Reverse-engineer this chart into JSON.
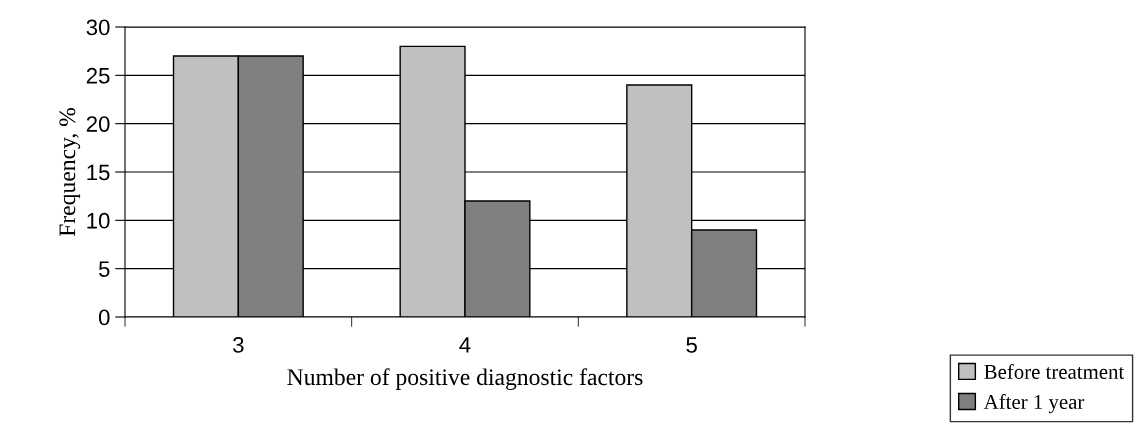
{
  "chart_data": {
    "type": "bar",
    "xlabel": "Number of positive diagnostic factors",
    "ylabel": "Frequency, %",
    "categories": [
      "3",
      "4",
      "5"
    ],
    "series": [
      {
        "name": "Before treatment",
        "color": "#c0c0c0",
        "values": [
          27,
          28,
          24
        ]
      },
      {
        "name": "After 1 year",
        "color": "#808080",
        "values": [
          27,
          12,
          9
        ]
      }
    ],
    "ylim": [
      0,
      30
    ],
    "yticks": [
      0,
      5,
      10,
      15,
      20,
      25,
      30
    ],
    "grid": "y",
    "legend": "bottom right"
  }
}
